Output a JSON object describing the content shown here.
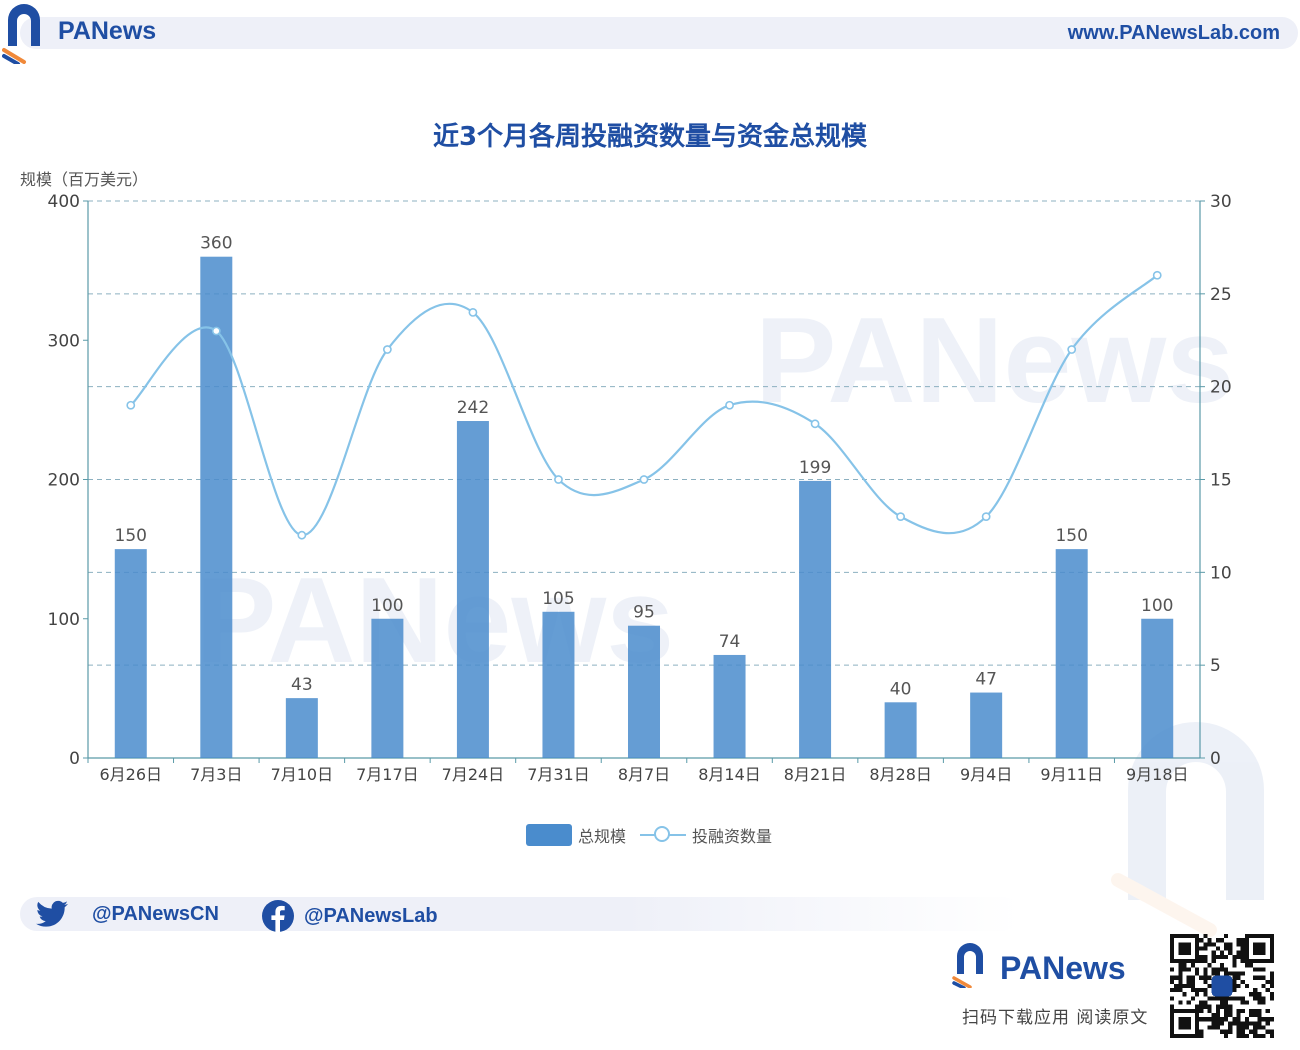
{
  "header": {
    "logo_text": "PANews",
    "url": "www.PANewsLab.com"
  },
  "chart_data": {
    "type": "bar+line",
    "title": "近3个月各周投融资数量与资金总规模",
    "ylabel_left": "规模（百万美元）",
    "ylabel_right": "",
    "categories": [
      "6月26日",
      "7月3日",
      "7月10日",
      "7月17日",
      "7月24日",
      "7月31日",
      "8月7日",
      "8月14日",
      "8月21日",
      "8月28日",
      "9月4日",
      "9月11日",
      "9月18日"
    ],
    "series": [
      {
        "name": "总规模",
        "type": "bar",
        "axis": "left",
        "values": [
          150,
          360,
          43,
          100,
          242,
          105,
          95,
          74,
          199,
          40,
          47,
          150,
          100
        ]
      },
      {
        "name": "投融资数量",
        "type": "line",
        "axis": "right",
        "smooth": true,
        "values": [
          19,
          23,
          12,
          22,
          24,
          15,
          15,
          19,
          18,
          13,
          13,
          22,
          26
        ]
      }
    ],
    "ylim_left": [
      0,
      400
    ],
    "yticks_left": [
      "0",
      "100",
      "200",
      "300",
      "400"
    ],
    "ylim_right": [
      0,
      30
    ],
    "yticks_right": [
      "0",
      "5",
      "10",
      "15",
      "20",
      "25",
      "30"
    ],
    "grid": "horizontal-dashed",
    "legend": "bottom-center",
    "colors": {
      "bar": "#4a8ccd",
      "line": "#86c3e8"
    }
  },
  "social": {
    "twitter_handle": "@PANewsCN",
    "facebook_handle": "@PANewsLab",
    "twitter_icon": "twitter-bird-icon",
    "facebook_icon": "facebook-icon"
  },
  "footer": {
    "logo_text": "PANews",
    "caption": "扫码下载应用  阅读原文"
  },
  "colors": {
    "brand": "#1f4ea3",
    "accent_orange": "#f0893a"
  }
}
